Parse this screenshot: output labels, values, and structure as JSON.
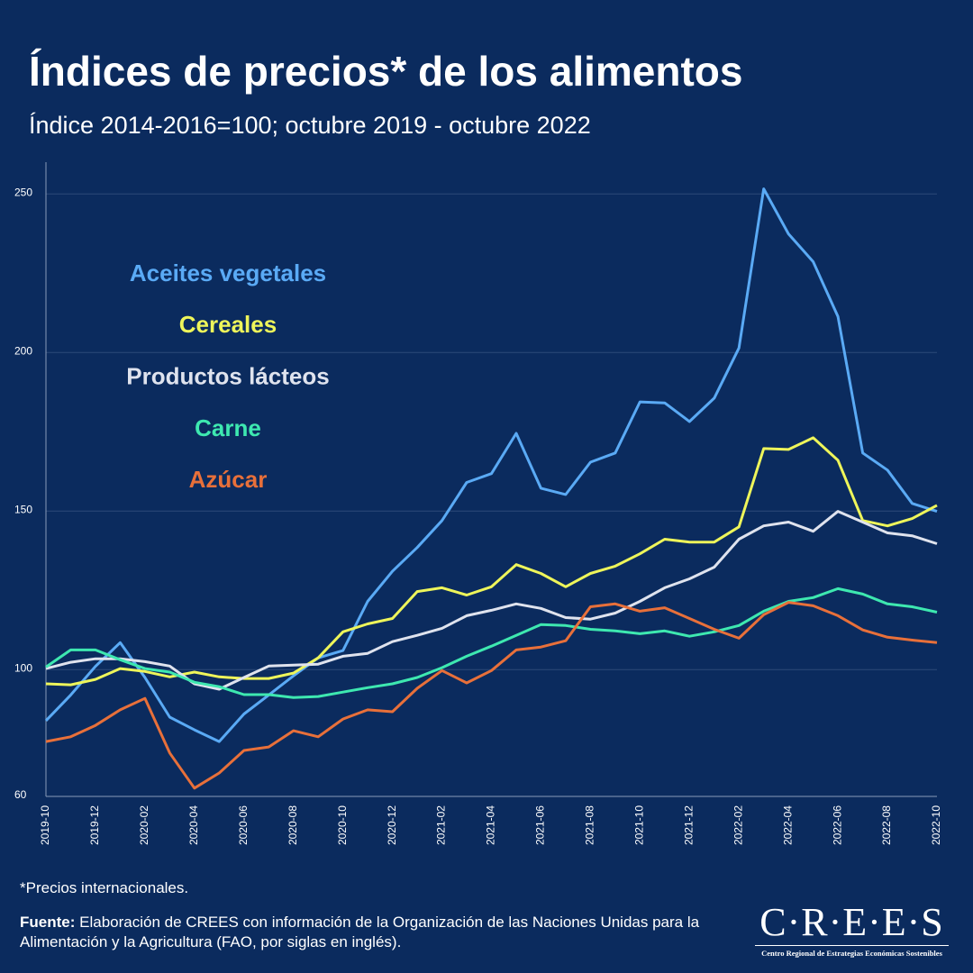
{
  "chart_data": {
    "type": "line",
    "title": "Índices de precios* de los alimentos",
    "subtitle": "Índice 2014-2016=100; octubre 2019 - octubre 2022",
    "categories": [
      "2019-10",
      null,
      "2019-12",
      null,
      "2020-02",
      null,
      "2020-04",
      null,
      "2020-06",
      null,
      "2020-08",
      null,
      "2020-10",
      null,
      "2020-12",
      null,
      "2021-02",
      null,
      "2021-04",
      null,
      "2021-06",
      null,
      "2021-08",
      null,
      "2021-10",
      null,
      "2021-12",
      null,
      "2022-02",
      null,
      "2022-04",
      null,
      "2022-06",
      null,
      "2022-08",
      null,
      "2022-10"
    ],
    "ylim": [
      60,
      260
    ],
    "yticks": [
      60,
      100,
      150,
      200,
      250
    ],
    "grid": true,
    "series": [
      {
        "name": "Aceites vegetales",
        "color": "#5aaaf5",
        "values": [
          83.9,
          92,
          101,
          108.5,
          97.5,
          85,
          81,
          77.3,
          86,
          92,
          98,
          103.7,
          106,
          121.5,
          131,
          138.5,
          147,
          159,
          161.8,
          174.5,
          157.2,
          155.2,
          165.4,
          168.3,
          184.4,
          184.1,
          178.2,
          185.6,
          201.4,
          251.6,
          237.4,
          228.6,
          211.3,
          168.3,
          162.9,
          152.4,
          149.9
        ]
      },
      {
        "name": "Cereales",
        "color": "#eef55a",
        "values": [
          95.5,
          95.2,
          96.9,
          100.3,
          99.4,
          97.7,
          99.2,
          97.7,
          97.2,
          97.2,
          98.9,
          103.7,
          111.9,
          114.4,
          116.1,
          124.6,
          125.8,
          123.5,
          126.1,
          133.1,
          130.3,
          126.1,
          130.3,
          132.6,
          136.5,
          141.1,
          140.2,
          140.2,
          145,
          169.7,
          169.4,
          173.1,
          166,
          147,
          145.3,
          147.6,
          151.8
        ]
      },
      {
        "name": "Productos lácteos",
        "color": "#dfe3ee",
        "values": [
          100.3,
          102.3,
          103.4,
          103.4,
          102.5,
          101.1,
          95.5,
          93.8,
          97.5,
          101.1,
          101.4,
          101.7,
          104.2,
          105.1,
          108.8,
          110.8,
          113,
          117,
          118.7,
          120.7,
          119.3,
          116.4,
          115.9,
          117.8,
          121.5,
          125.8,
          128.6,
          132.3,
          141.1,
          145.3,
          146.5,
          143.6,
          149.9,
          146.5,
          143.1,
          142.2,
          139.7
        ]
      },
      {
        "name": "Carne",
        "color": "#3ee8b0",
        "values": [
          100.8,
          106.2,
          106.2,
          103.1,
          100.3,
          99.2,
          96,
          94.6,
          92.1,
          92.1,
          91.2,
          91.5,
          92.9,
          94.3,
          95.5,
          97.5,
          100.6,
          104.2,
          107.4,
          110.8,
          114.2,
          113.9,
          112.7,
          112.2,
          111.3,
          112.2,
          110.5,
          111.9,
          113.9,
          118.4,
          121.5,
          122.7,
          125.5,
          123.8,
          120.7,
          119.8,
          118.1
        ]
      },
      {
        "name": "Azúcar",
        "color": "#e8703a",
        "values": [
          77.3,
          78.8,
          82.4,
          87.3,
          90.9,
          73.7,
          62.6,
          67.4,
          74.5,
          75.6,
          80.7,
          78.8,
          84.4,
          87.3,
          86.7,
          94.1,
          99.7,
          95.8,
          99.7,
          106.2,
          107.1,
          109.1,
          119.8,
          120.7,
          118.4,
          119.5,
          116.1,
          112.7,
          109.9,
          117.3,
          121.2,
          120.1,
          117,
          112.5,
          110.2,
          109.3,
          108.5
        ]
      }
    ],
    "footnote": "*Precios internacionales.",
    "source_label": "Fuente:",
    "source": "Elaboración de CREES con información de la Organización de las Naciones Unidas para la Alimentación y la Agricultura (FAO, por siglas en inglés).",
    "logo": "C·R·E·E·S",
    "logo_caption": "Centro Regional de Estrategias Económicas Sostenibles"
  }
}
